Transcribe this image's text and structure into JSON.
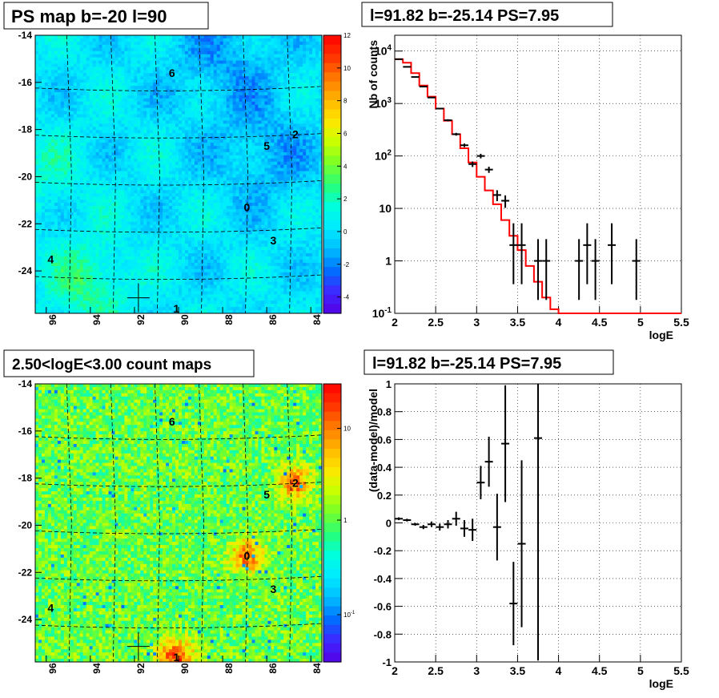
{
  "panels": {
    "top_left": {
      "title": "PS map b=-20 l=90",
      "x_ticks": [
        "96",
        "94",
        "92",
        "90",
        "88",
        "86",
        "84"
      ],
      "y_ticks": [
        "-14",
        "-16",
        "-18",
        "-20",
        "-22",
        "-24"
      ],
      "colorbar_ticks": [
        "12",
        "10",
        "8",
        "6",
        "4",
        "2",
        "0",
        "-2",
        "-4"
      ],
      "labels": [
        "6",
        "2",
        "5",
        "0",
        "3",
        "4",
        "1"
      ]
    },
    "bottom_left": {
      "title": "2.50<logE<3.00 count maps",
      "x_ticks": [
        "96",
        "94",
        "92",
        "90",
        "88",
        "86",
        "84"
      ],
      "y_ticks": [
        "-14",
        "-16",
        "-18",
        "-20",
        "-22",
        "-24"
      ],
      "colorbar_ticks": [
        "10",
        "1",
        "10-1"
      ],
      "labels": [
        "6",
        "2",
        "5",
        "0",
        "3",
        "4",
        "1"
      ]
    },
    "top_right": {
      "title": "l=91.82 b=-25.14 PS=7.95",
      "xlabel": "logE",
      "ylabel": "Nb of counts"
    },
    "bottom_right": {
      "title": "l=91.82 b=-25.14 PS=7.95",
      "xlabel": "logE",
      "ylabel": "(data-model)/model"
    }
  },
  "chart_data": [
    {
      "type": "heatmap",
      "title": "PS map b=-20 l=90",
      "x_range": [
        96.5,
        83.5
      ],
      "y_range": [
        -25.8,
        -14
      ],
      "z_range": [
        -5,
        12
      ],
      "colorbar_ticks": [
        12,
        10,
        8,
        6,
        4,
        2,
        0,
        -2,
        -4
      ],
      "sources": [
        {
          "label": "0",
          "l": 86.9,
          "b": -21.3
        },
        {
          "label": "1",
          "l": 90.1,
          "b": -25.6
        },
        {
          "label": "2",
          "l": 84.7,
          "b": -18.2
        },
        {
          "label": "3",
          "l": 85.7,
          "b": -22.7
        },
        {
          "label": "4",
          "l": 95.8,
          "b": -23.5
        },
        {
          "label": "5",
          "l": 86.0,
          "b": -18.7
        },
        {
          "label": "6",
          "l": 90.3,
          "b": -15.6
        }
      ],
      "marker": {
        "l": 91.82,
        "b": -25.14
      }
    },
    {
      "type": "heatmap",
      "title": "2.50<logE<3.00 count maps",
      "x_range": [
        96.5,
        83.5
      ],
      "y_range": [
        -25.8,
        -14
      ],
      "z_scale": "log",
      "colorbar_ticks": [
        "10",
        "1",
        "10-1"
      ],
      "marker": {
        "l": 91.82,
        "b": -25.14
      }
    },
    {
      "type": "line",
      "title": "l=91.82 b=-25.14 PS=7.95",
      "xlabel": "logE",
      "ylabel": "Nb of counts",
      "xlim": [
        2,
        5.5
      ],
      "ylim": [
        0.1,
        20000
      ],
      "y_scale": "log",
      "x_ticks": [
        2,
        2.5,
        3,
        3.5,
        4,
        4.5,
        5,
        5.5
      ],
      "y_ticks": [
        "10-1",
        "1",
        "10",
        "102",
        "103",
        "104"
      ],
      "grid": true,
      "data_points": [
        {
          "x": 2.05,
          "y": 7000
        },
        {
          "x": 2.15,
          "y": 5000
        },
        {
          "x": 2.25,
          "y": 3200
        },
        {
          "x": 2.35,
          "y": 2100
        },
        {
          "x": 2.45,
          "y": 1300
        },
        {
          "x": 2.55,
          "y": 800
        },
        {
          "x": 2.65,
          "y": 480
        },
        {
          "x": 2.75,
          "y": 260
        },
        {
          "x": 2.85,
          "y": 160
        },
        {
          "x": 2.95,
          "y": 70
        },
        {
          "x": 3.05,
          "y": 100
        },
        {
          "x": 3.15,
          "y": 55
        },
        {
          "x": 3.25,
          "y": 18
        },
        {
          "x": 3.35,
          "y": 14
        },
        {
          "x": 3.45,
          "y": 2
        },
        {
          "x": 3.55,
          "y": 2
        },
        {
          "x": 3.75,
          "y": 1
        },
        {
          "x": 3.85,
          "y": 1
        },
        {
          "x": 4.25,
          "y": 1
        },
        {
          "x": 4.35,
          "y": 2
        },
        {
          "x": 4.45,
          "y": 1
        },
        {
          "x": 4.65,
          "y": 2
        },
        {
          "x": 4.95,
          "y": 1
        }
      ],
      "model_step": [
        {
          "x": 2.0,
          "y": 7000
        },
        {
          "x": 2.1,
          "y": 6000
        },
        {
          "x": 2.2,
          "y": 3800
        },
        {
          "x": 2.3,
          "y": 2200
        },
        {
          "x": 2.4,
          "y": 1350
        },
        {
          "x": 2.5,
          "y": 800
        },
        {
          "x": 2.6,
          "y": 470
        },
        {
          "x": 2.7,
          "y": 260
        },
        {
          "x": 2.8,
          "y": 140
        },
        {
          "x": 2.9,
          "y": 75
        },
        {
          "x": 3.0,
          "y": 40
        },
        {
          "x": 3.1,
          "y": 22
        },
        {
          "x": 3.2,
          "y": 12
        },
        {
          "x": 3.3,
          "y": 6
        },
        {
          "x": 3.4,
          "y": 3
        },
        {
          "x": 3.5,
          "y": 1.6
        },
        {
          "x": 3.6,
          "y": 0.8
        },
        {
          "x": 3.7,
          "y": 0.4
        },
        {
          "x": 3.8,
          "y": 0.2
        },
        {
          "x": 3.9,
          "y": 0.12
        },
        {
          "x": 4.0,
          "y": 0.1
        },
        {
          "x": 5.5,
          "y": 0.1
        }
      ]
    },
    {
      "type": "scatter",
      "title": "l=91.82 b=-25.14 PS=7.95",
      "xlabel": "logE",
      "ylabel": "(data-model)/model",
      "xlim": [
        2,
        5.5
      ],
      "ylim": [
        -1,
        1
      ],
      "x_ticks": [
        2,
        2.5,
        3,
        3.5,
        4,
        4.5,
        5,
        5.5
      ],
      "y_ticks": [
        -1,
        -0.8,
        -0.6,
        -0.4,
        -0.2,
        0,
        0.2,
        0.4,
        0.6,
        0.8,
        1
      ],
      "grid": true,
      "points": [
        {
          "x": 2.05,
          "y": 0.03,
          "err": 0.01
        },
        {
          "x": 2.15,
          "y": 0.02,
          "err": 0.01
        },
        {
          "x": 2.25,
          "y": -0.01,
          "err": 0.01
        },
        {
          "x": 2.35,
          "y": -0.03,
          "err": 0.015
        },
        {
          "x": 2.45,
          "y": -0.01,
          "err": 0.02
        },
        {
          "x": 2.55,
          "y": -0.03,
          "err": 0.025
        },
        {
          "x": 2.65,
          "y": -0.01,
          "err": 0.03
        },
        {
          "x": 2.75,
          "y": 0.03,
          "err": 0.05
        },
        {
          "x": 2.85,
          "y": -0.04,
          "err": 0.06
        },
        {
          "x": 2.95,
          "y": -0.05,
          "err": 0.08
        },
        {
          "x": 3.05,
          "y": 0.29,
          "err": 0.12
        },
        {
          "x": 3.15,
          "y": 0.44,
          "err": 0.18
        },
        {
          "x": 3.25,
          "y": -0.03,
          "err": 0.24
        },
        {
          "x": 3.35,
          "y": 0.57,
          "err": 0.42
        },
        {
          "x": 3.45,
          "y": -0.58,
          "err": 0.3
        },
        {
          "x": 3.55,
          "y": -0.15,
          "err": 0.6
        },
        {
          "x": 3.75,
          "y": 0.61,
          "err": 1.6
        }
      ]
    }
  ]
}
